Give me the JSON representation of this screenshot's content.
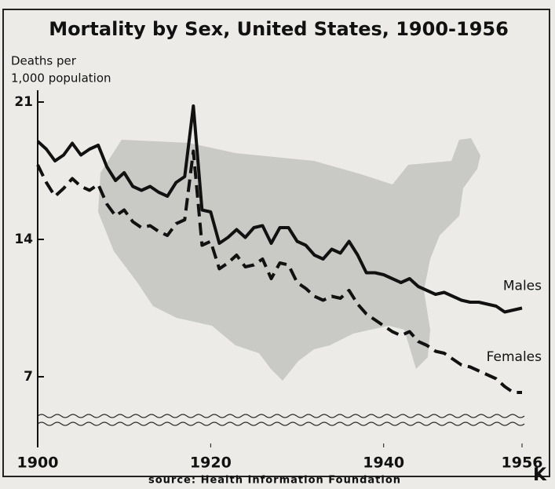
{
  "chart_data": {
    "type": "line",
    "title": "Mortality by Sex, United States, 1900-1956",
    "y_label_line1": "Deaths per",
    "y_label_line2": "1,000 population",
    "source": "source: Health Information Foundation",
    "corner_mark": "K",
    "x": [
      1900,
      1901,
      1902,
      1903,
      1904,
      1905,
      1906,
      1907,
      1908,
      1909,
      1910,
      1911,
      1912,
      1913,
      1914,
      1915,
      1916,
      1917,
      1918,
      1919,
      1920,
      1921,
      1922,
      1923,
      1924,
      1925,
      1926,
      1927,
      1928,
      1929,
      1930,
      1931,
      1932,
      1933,
      1934,
      1935,
      1936,
      1937,
      1938,
      1939,
      1940,
      1941,
      1942,
      1943,
      1944,
      1945,
      1946,
      1947,
      1948,
      1949,
      1950,
      1951,
      1952,
      1953,
      1954,
      1955,
      1956
    ],
    "series": [
      {
        "name": "Males",
        "color": "#111111",
        "dashed": false,
        "values": [
          19.0,
          18.6,
          18.0,
          18.3,
          18.9,
          18.3,
          18.6,
          18.8,
          17.7,
          17.0,
          17.4,
          16.7,
          16.5,
          16.7,
          16.4,
          16.2,
          16.9,
          17.2,
          20.8,
          15.5,
          15.4,
          13.8,
          14.1,
          14.5,
          14.1,
          14.6,
          14.7,
          13.8,
          14.6,
          14.6,
          13.9,
          13.7,
          13.2,
          13.0,
          13.5,
          13.3,
          13.9,
          13.2,
          12.3,
          12.3,
          12.2,
          12.0,
          11.8,
          12.0,
          11.6,
          11.4,
          11.2,
          11.3,
          11.1,
          10.9,
          10.8,
          10.8,
          10.7,
          10.6,
          10.3,
          10.4,
          10.5
        ]
      },
      {
        "name": "Females",
        "color": "#111111",
        "dashed": true,
        "values": [
          17.8,
          16.9,
          16.2,
          16.6,
          17.1,
          16.7,
          16.5,
          16.8,
          15.8,
          15.2,
          15.5,
          14.9,
          14.6,
          14.7,
          14.4,
          14.2,
          14.8,
          15.0,
          18.5,
          13.7,
          13.9,
          12.5,
          12.8,
          13.2,
          12.6,
          12.7,
          13.0,
          12.0,
          12.8,
          12.7,
          11.8,
          11.5,
          11.1,
          10.9,
          11.1,
          11.0,
          11.4,
          10.7,
          10.2,
          9.9,
          9.6,
          9.3,
          9.1,
          9.3,
          8.8,
          8.6,
          8.3,
          8.2,
          7.9,
          7.6,
          7.5,
          7.3,
          7.1,
          6.9,
          6.5,
          6.2,
          6.2
        ]
      }
    ],
    "xlim": [
      1900,
      1956
    ],
    "xticks": [
      1900,
      1920,
      1940,
      1956
    ],
    "ylim": [
      4,
      22
    ],
    "yticks": [
      7,
      14,
      21
    ]
  }
}
